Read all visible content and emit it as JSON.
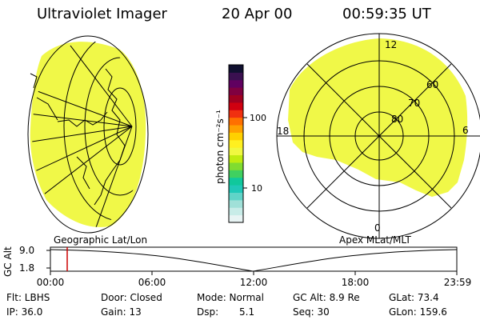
{
  "header": {
    "instrument": "Ultraviolet Imager",
    "date": "20 Apr 00",
    "time": "00:59:35 UT"
  },
  "colorbar": {
    "label": "photon cm⁻²s⁻¹",
    "ticks": [
      "100",
      "10"
    ],
    "colors": [
      "#e8f4f4",
      "#c8ece8",
      "#a0e0d8",
      "#60d4c8",
      "#20c8b8",
      "#10c89c",
      "#40d060",
      "#80dc30",
      "#c0ec10",
      "#f0f840",
      "#fff020",
      "#ffd000",
      "#ffa000",
      "#ff7000",
      "#f03010",
      "#d00010",
      "#a00020",
      "#800040",
      "#600060",
      "#3a1050",
      "#101030"
    ]
  },
  "geo_panel": {
    "caption": "Geographic Lat/Lon",
    "fill_color": "#f0f848"
  },
  "polar_panel": {
    "caption": "Apex MLat/MLT",
    "mlt_labels": {
      "top": "12",
      "left": "18",
      "right": "6",
      "bottom": "0"
    },
    "lat_labels": [
      "60",
      "70",
      "80"
    ],
    "fill_color": "#f0f848"
  },
  "orbit_plot": {
    "ylabel": "GC Alt",
    "yticks": [
      "9.0",
      "1.8"
    ],
    "xticks": [
      "00:00",
      "06:00",
      "12:00",
      "18:00",
      "23:59"
    ],
    "current_time_hours": 0.993,
    "marker_color": "#cc0000"
  },
  "info": {
    "filter": "Flt: LBHS",
    "door": "Door: Closed",
    "mode": "Mode: Normal",
    "gc_alt": "GC Alt: 8.9 Re",
    "glat": "GLat: 73.4",
    "ip": "IP: 36.0",
    "gain": "Gain: 13",
    "dsp_label": "Dsp:",
    "dsp_value": "5.1",
    "seq": "Seq: 30",
    "glon": "GLon: 159.6"
  }
}
